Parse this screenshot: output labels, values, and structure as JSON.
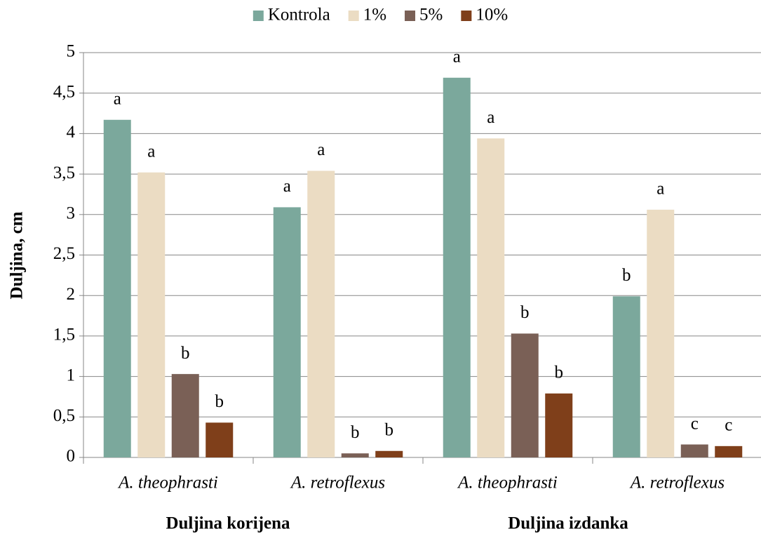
{
  "chart_data": {
    "type": "bar",
    "y_label": "Duljina, cm",
    "categories": [
      "A. theophrasti",
      "A. retroflexus",
      "A. theophrasti",
      "A. retroflexus"
    ],
    "group_labels": [
      "Duljina korijena",
      "Duljina izdanka"
    ],
    "series": [
      {
        "name": "Kontrola",
        "color": "#7ba89c",
        "values": [
          4.17,
          3.09,
          4.69,
          1.99
        ],
        "letters": [
          "a",
          "a",
          "a",
          "b"
        ]
      },
      {
        "name": "1%",
        "color": "#ebdcc3",
        "values": [
          3.52,
          3.54,
          3.94,
          3.06
        ],
        "letters": [
          "a",
          "a",
          "a",
          "a"
        ]
      },
      {
        "name": "5%",
        "color": "#7a6056",
        "values": [
          1.03,
          0.05,
          1.53,
          0.16
        ],
        "letters": [
          "b",
          "b",
          "b",
          "c"
        ]
      },
      {
        "name": "10%",
        "color": "#7f3f1a",
        "values": [
          0.43,
          0.08,
          0.79,
          0.14
        ],
        "letters": [
          "b",
          "b",
          "b",
          "c"
        ]
      }
    ],
    "ylim": [
      0,
      5
    ],
    "yticks": [
      0,
      {
        "value": 0.5,
        "label": "0,5"
      },
      1,
      {
        "value": 1.5,
        "label": "1,5"
      },
      2,
      {
        "value": 2.5,
        "label": "2,5"
      },
      3,
      {
        "value": 3.5,
        "label": "3,5"
      },
      4,
      {
        "value": 4.5,
        "label": "4,5"
      },
      5
    ],
    "grid": true,
    "legend": "top"
  }
}
